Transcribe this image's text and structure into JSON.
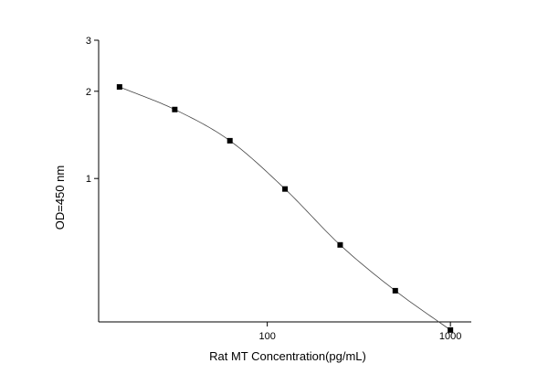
{
  "chart_data": {
    "type": "scatter",
    "xlabel": "Rat MT  Concentration(pg/mL)",
    "ylabel": "OD=450 nm",
    "xscale": "log",
    "yscale": "log",
    "xlim": [
      12,
      1300
    ],
    "ylim": [
      0.32,
      3
    ],
    "xticks": [
      {
        "value": 100,
        "label": "100"
      },
      {
        "value": 1000,
        "label": "1000"
      }
    ],
    "yticks": [
      {
        "value": 1,
        "label": "1"
      },
      {
        "value": 2,
        "label": "2"
      },
      {
        "value": 3,
        "label": "3"
      }
    ],
    "grid": false,
    "fit_line": true,
    "colors": {
      "marker": "#000000",
      "line": "#444444",
      "axis": "#000000"
    },
    "series": [
      {
        "x": [
          15.6,
          31.25,
          62.5,
          125,
          250,
          500,
          1000
        ],
        "y": [
          2.07,
          1.73,
          1.35,
          0.92,
          0.59,
          0.41,
          0.3
        ]
      }
    ]
  }
}
